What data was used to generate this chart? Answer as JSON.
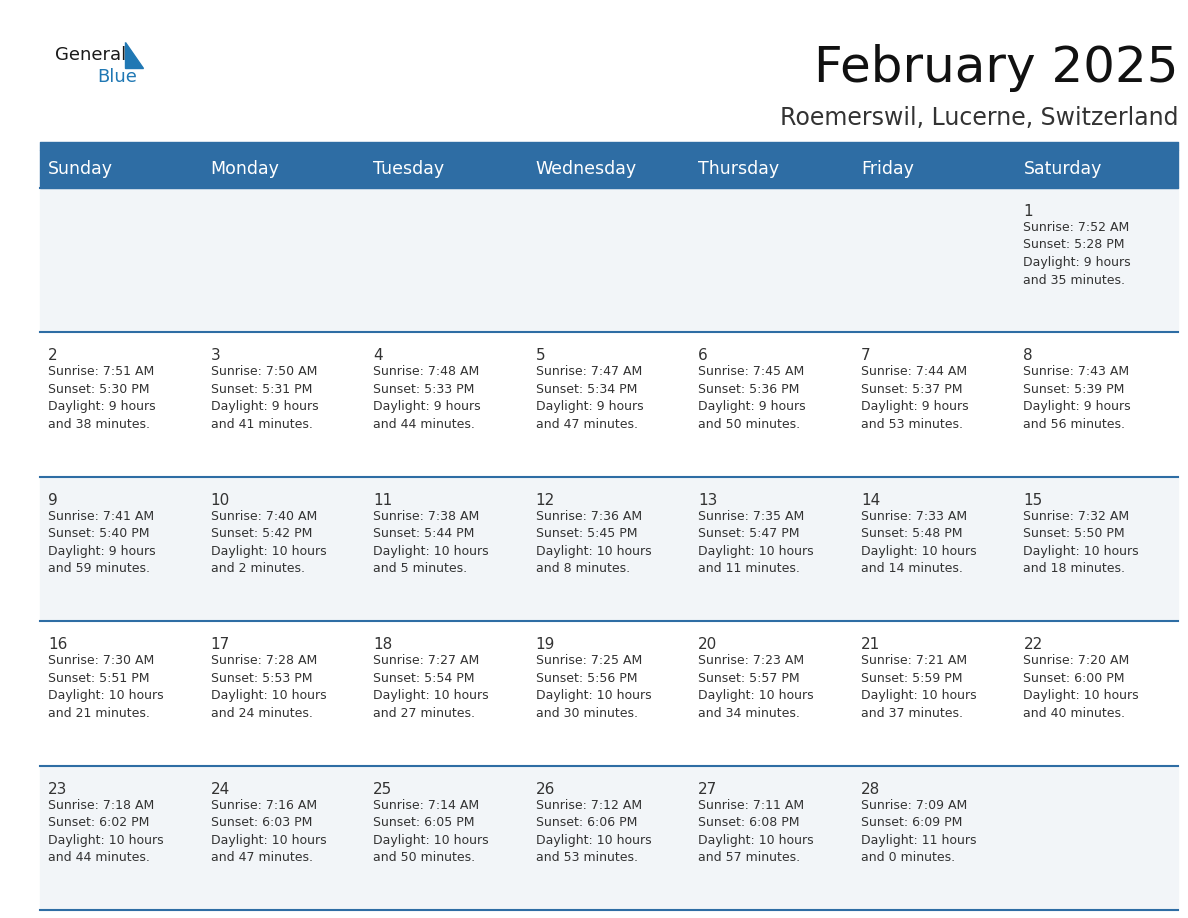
{
  "title": "February 2025",
  "subtitle": "Roemerswil, Lucerne, Switzerland",
  "header_color": "#2E6DA4",
  "header_text_color": "#FFFFFF",
  "cell_bg_even": "#F2F5F8",
  "cell_bg_odd": "#FFFFFF",
  "border_color": "#2E6DA4",
  "day_headers": [
    "Sunday",
    "Monday",
    "Tuesday",
    "Wednesday",
    "Thursday",
    "Friday",
    "Saturday"
  ],
  "title_fontsize": 36,
  "subtitle_fontsize": 17,
  "day_header_fontsize": 12.5,
  "date_fontsize": 11,
  "info_fontsize": 9,
  "background_color": "#FFFFFF",
  "logo_general_color": "#1a1a1a",
  "logo_blue_color": "#2078B4",
  "logo_triangle_color": "#2078B4",
  "calendar_data": [
    [
      null,
      null,
      null,
      null,
      null,
      null,
      {
        "day": 1,
        "sunrise": "7:52 AM",
        "sunset": "5:28 PM",
        "daylight": "9 hours",
        "daylight2": "and 35 minutes."
      }
    ],
    [
      {
        "day": 2,
        "sunrise": "7:51 AM",
        "sunset": "5:30 PM",
        "daylight": "9 hours",
        "daylight2": "and 38 minutes."
      },
      {
        "day": 3,
        "sunrise": "7:50 AM",
        "sunset": "5:31 PM",
        "daylight": "9 hours",
        "daylight2": "and 41 minutes."
      },
      {
        "day": 4,
        "sunrise": "7:48 AM",
        "sunset": "5:33 PM",
        "daylight": "9 hours",
        "daylight2": "and 44 minutes."
      },
      {
        "day": 5,
        "sunrise": "7:47 AM",
        "sunset": "5:34 PM",
        "daylight": "9 hours",
        "daylight2": "and 47 minutes."
      },
      {
        "day": 6,
        "sunrise": "7:45 AM",
        "sunset": "5:36 PM",
        "daylight": "9 hours",
        "daylight2": "and 50 minutes."
      },
      {
        "day": 7,
        "sunrise": "7:44 AM",
        "sunset": "5:37 PM",
        "daylight": "9 hours",
        "daylight2": "and 53 minutes."
      },
      {
        "day": 8,
        "sunrise": "7:43 AM",
        "sunset": "5:39 PM",
        "daylight": "9 hours",
        "daylight2": "and 56 minutes."
      }
    ],
    [
      {
        "day": 9,
        "sunrise": "7:41 AM",
        "sunset": "5:40 PM",
        "daylight": "9 hours",
        "daylight2": "and 59 minutes."
      },
      {
        "day": 10,
        "sunrise": "7:40 AM",
        "sunset": "5:42 PM",
        "daylight": "10 hours",
        "daylight2": "and 2 minutes."
      },
      {
        "day": 11,
        "sunrise": "7:38 AM",
        "sunset": "5:44 PM",
        "daylight": "10 hours",
        "daylight2": "and 5 minutes."
      },
      {
        "day": 12,
        "sunrise": "7:36 AM",
        "sunset": "5:45 PM",
        "daylight": "10 hours",
        "daylight2": "and 8 minutes."
      },
      {
        "day": 13,
        "sunrise": "7:35 AM",
        "sunset": "5:47 PM",
        "daylight": "10 hours",
        "daylight2": "and 11 minutes."
      },
      {
        "day": 14,
        "sunrise": "7:33 AM",
        "sunset": "5:48 PM",
        "daylight": "10 hours",
        "daylight2": "and 14 minutes."
      },
      {
        "day": 15,
        "sunrise": "7:32 AM",
        "sunset": "5:50 PM",
        "daylight": "10 hours",
        "daylight2": "and 18 minutes."
      }
    ],
    [
      {
        "day": 16,
        "sunrise": "7:30 AM",
        "sunset": "5:51 PM",
        "daylight": "10 hours",
        "daylight2": "and 21 minutes."
      },
      {
        "day": 17,
        "sunrise": "7:28 AM",
        "sunset": "5:53 PM",
        "daylight": "10 hours",
        "daylight2": "and 24 minutes."
      },
      {
        "day": 18,
        "sunrise": "7:27 AM",
        "sunset": "5:54 PM",
        "daylight": "10 hours",
        "daylight2": "and 27 minutes."
      },
      {
        "day": 19,
        "sunrise": "7:25 AM",
        "sunset": "5:56 PM",
        "daylight": "10 hours",
        "daylight2": "and 30 minutes."
      },
      {
        "day": 20,
        "sunrise": "7:23 AM",
        "sunset": "5:57 PM",
        "daylight": "10 hours",
        "daylight2": "and 34 minutes."
      },
      {
        "day": 21,
        "sunrise": "7:21 AM",
        "sunset": "5:59 PM",
        "daylight": "10 hours",
        "daylight2": "and 37 minutes."
      },
      {
        "day": 22,
        "sunrise": "7:20 AM",
        "sunset": "6:00 PM",
        "daylight": "10 hours",
        "daylight2": "and 40 minutes."
      }
    ],
    [
      {
        "day": 23,
        "sunrise": "7:18 AM",
        "sunset": "6:02 PM",
        "daylight": "10 hours",
        "daylight2": "and 44 minutes."
      },
      {
        "day": 24,
        "sunrise": "7:16 AM",
        "sunset": "6:03 PM",
        "daylight": "10 hours",
        "daylight2": "and 47 minutes."
      },
      {
        "day": 25,
        "sunrise": "7:14 AM",
        "sunset": "6:05 PM",
        "daylight": "10 hours",
        "daylight2": "and 50 minutes."
      },
      {
        "day": 26,
        "sunrise": "7:12 AM",
        "sunset": "6:06 PM",
        "daylight": "10 hours",
        "daylight2": "and 53 minutes."
      },
      {
        "day": 27,
        "sunrise": "7:11 AM",
        "sunset": "6:08 PM",
        "daylight": "10 hours",
        "daylight2": "and 57 minutes."
      },
      {
        "day": 28,
        "sunrise": "7:09 AM",
        "sunset": "6:09 PM",
        "daylight": "11 hours",
        "daylight2": "and 0 minutes."
      },
      null
    ]
  ]
}
